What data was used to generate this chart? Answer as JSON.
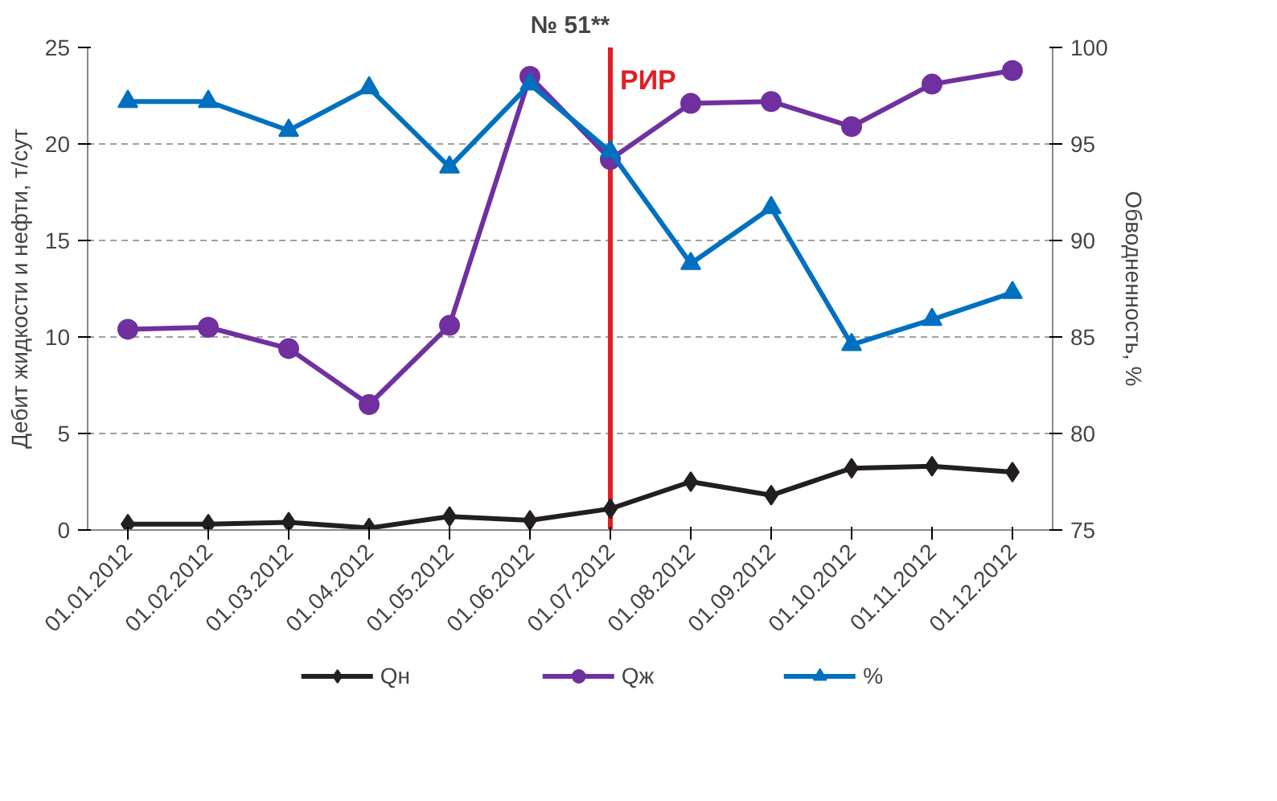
{
  "chart_data": {
    "type": "line",
    "title": "№ 51**",
    "ylabel": "Дебит жидкости и нефти, т/сут",
    "y2label": "Обводненность, %",
    "categories": [
      "01.01.2012",
      "01.02.2012",
      "01.03.2012",
      "01.04.2012",
      "01.05.2012",
      "01.06.2012",
      "01.07.2012",
      "01.08.2012",
      "01.09.2012",
      "01.10.2012",
      "01.11.2012",
      "01.12.2012"
    ],
    "series": [
      {
        "name": "Qн",
        "color": "#231f20",
        "marker": "diamond",
        "values": [
          0.3,
          0.3,
          0.4,
          0.1,
          0.7,
          0.5,
          1.1,
          2.5,
          1.8,
          3.2,
          3.3,
          3.0
        ]
      },
      {
        "name": "Qж",
        "color": "#7030a0",
        "marker": "circle",
        "values": [
          10.4,
          10.5,
          9.4,
          6.5,
          10.6,
          23.5,
          19.2,
          22.1,
          22.2,
          20.9,
          23.1,
          23.8
        ]
      },
      {
        "name": "%",
        "color": "#0070c0",
        "marker": "triangle",
        "axis": "y2",
        "values": [
          97.2,
          97.2,
          95.7,
          97.9,
          93.8,
          98.1,
          94.6,
          88.8,
          91.7,
          84.6,
          85.9,
          87.3
        ]
      }
    ],
    "ylim": [
      0,
      25
    ],
    "yticks": [
      0,
      5,
      10,
      15,
      20,
      25
    ],
    "y2lim": [
      75,
      100
    ],
    "y2ticks": [
      75,
      80,
      85,
      90,
      95,
      100
    ],
    "ref_lines": [
      {
        "axis": "x",
        "value": "01.07.2012",
        "label": "РИР",
        "color": "#e31e24"
      }
    ],
    "grid": "y",
    "legend": "bottom"
  }
}
